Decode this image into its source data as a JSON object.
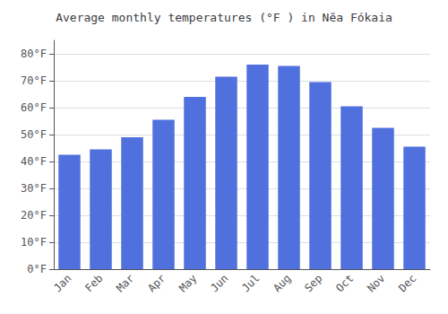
{
  "chart_data": {
    "type": "bar",
    "title": "Average monthly temperatures (°F ) in Nĕa Fókaia",
    "categories": [
      "Jan",
      "Feb",
      "Mar",
      "Apr",
      "May",
      "Jun",
      "Jul",
      "Aug",
      "Sep",
      "Oct",
      "Nov",
      "Dec"
    ],
    "values": [
      42.5,
      44.5,
      49.0,
      55.5,
      64.0,
      71.5,
      76.0,
      75.5,
      69.5,
      60.5,
      52.5,
      45.5
    ],
    "ylim": [
      0,
      85
    ],
    "yticks": [
      {
        "value": 0,
        "label": "0°F"
      },
      {
        "value": 10,
        "label": "10°F"
      },
      {
        "value": 20,
        "label": "20°F"
      },
      {
        "value": 30,
        "label": "30°F"
      },
      {
        "value": 40,
        "label": "40°F"
      },
      {
        "value": 50,
        "label": "50°F"
      },
      {
        "value": 60,
        "label": "60°F"
      },
      {
        "value": 70,
        "label": "70°F"
      },
      {
        "value": 80,
        "label": "80°F"
      }
    ],
    "grid": true
  }
}
